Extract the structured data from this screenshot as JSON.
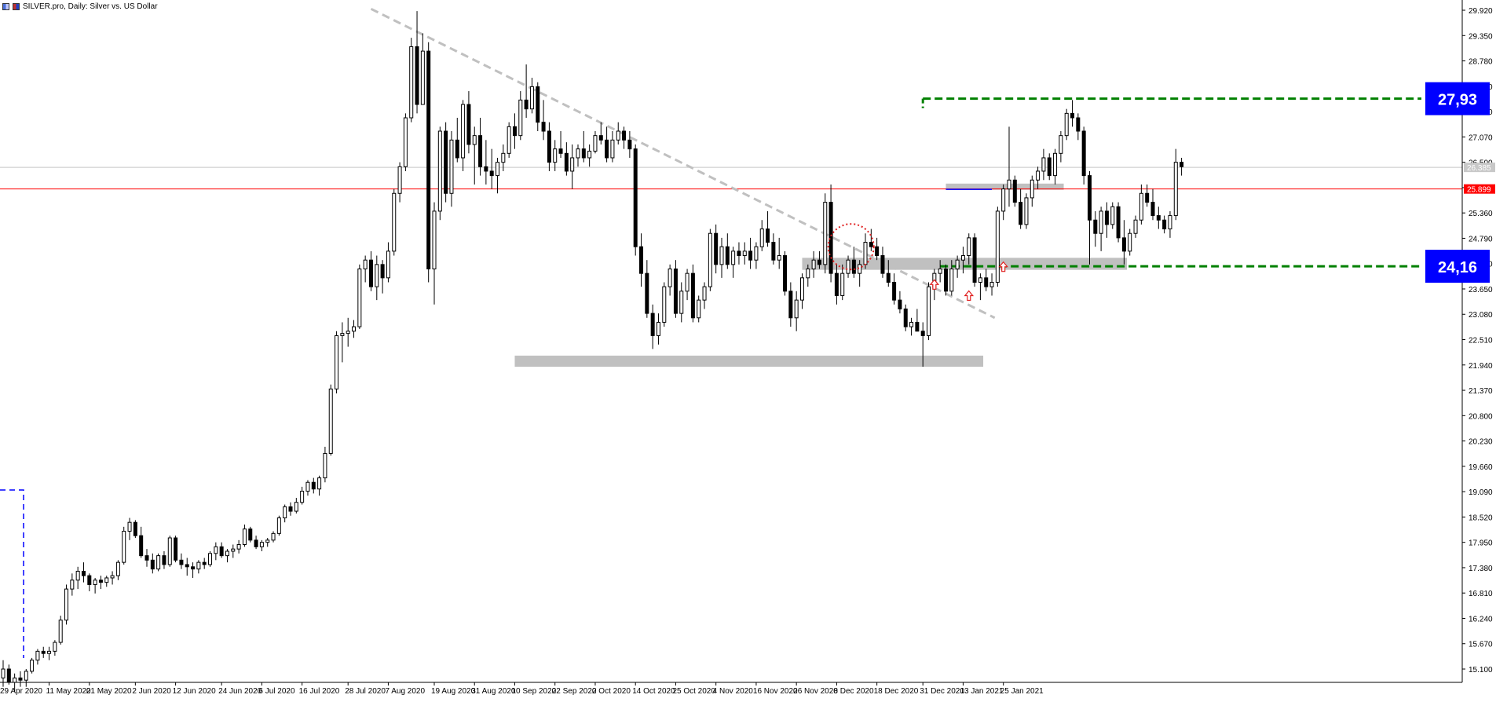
{
  "header": {
    "title": "SILVER.pro, Daily:  Silver vs. US Dollar"
  },
  "colors": {
    "background": "#ffffff",
    "candle_bear": "#000000",
    "candle_bull_fill": "#ffffff",
    "trendline": "#c0c0c0",
    "zone_fill": "#c0c0c0",
    "target_line": "#008000",
    "red_level": "#ff0000",
    "marker_blue": "#0000ff"
  },
  "labels": {
    "upper_target": "27,93",
    "lower_target": "24,16",
    "red_price_tag": "25.899",
    "current_price_tag": "26.385"
  },
  "chart_data": {
    "type": "candlestick",
    "title": "SILVER.pro, Daily:  Silver vs. US Dollar",
    "ylim": [
      14.8,
      30.15
    ],
    "y_ticks": [
      "29.920",
      "29.350",
      "28.780",
      "28.210",
      "27.640",
      "27.070",
      "26.500",
      "25.930",
      "25.360",
      "24.790",
      "24.220",
      "23.650",
      "23.080",
      "22.510",
      "21.940",
      "21.370",
      "20.800",
      "20.230",
      "19.660",
      "19.090",
      "18.520",
      "17.950",
      "17.380",
      "16.810",
      "16.240",
      "15.670",
      "15.100"
    ],
    "x_ticks": [
      "29 Apr 2020",
      "11 May 2020",
      "21 May 2020",
      "2 Jun 2020",
      "12 Jun 2020",
      "24 Jun 2020",
      "6 Jul 2020",
      "16 Jul 2020",
      "28 Jul 2020",
      "7 Aug 2020",
      "19 Aug 2020",
      "31 Aug 2020",
      "10 Sep 2020",
      "22 Sep 2020",
      "2 Oct 2020",
      "14 Oct 2020",
      "25 Oct 2020",
      "4 Nov 2020",
      "16 Nov 2020",
      "26 Nov 2020",
      "8 Dec 2020",
      "18 Dec 2020",
      "31 Dec 2020",
      "13 Jan 2021",
      "25 Jan 2021"
    ],
    "ohlc": [
      [
        14.9,
        15.3,
        14.7,
        15.1
      ],
      [
        15.1,
        15.2,
        14.75,
        14.8
      ],
      [
        14.8,
        15.0,
        14.6,
        14.9
      ],
      [
        14.9,
        15.05,
        14.7,
        14.85
      ],
      [
        14.85,
        15.1,
        14.7,
        15.05
      ],
      [
        15.05,
        15.35,
        15.0,
        15.3
      ],
      [
        15.3,
        15.55,
        15.2,
        15.5
      ],
      [
        15.5,
        15.6,
        15.35,
        15.45
      ],
      [
        15.45,
        15.6,
        15.3,
        15.5
      ],
      [
        15.5,
        15.75,
        15.4,
        15.7
      ],
      [
        15.7,
        16.3,
        15.65,
        16.2
      ],
      [
        16.2,
        17.0,
        16.1,
        16.9
      ],
      [
        16.9,
        17.25,
        16.75,
        17.1
      ],
      [
        17.1,
        17.4,
        16.9,
        17.3
      ],
      [
        17.3,
        17.5,
        17.05,
        17.2
      ],
      [
        17.2,
        17.25,
        16.85,
        17.0
      ],
      [
        17.0,
        17.15,
        16.8,
        17.1
      ],
      [
        17.1,
        17.2,
        16.9,
        17.05
      ],
      [
        17.05,
        17.2,
        16.95,
        17.15
      ],
      [
        17.15,
        17.3,
        17.0,
        17.2
      ],
      [
        17.2,
        17.55,
        17.1,
        17.5
      ],
      [
        17.5,
        18.3,
        17.45,
        18.2
      ],
      [
        18.2,
        18.5,
        18.0,
        18.4
      ],
      [
        18.4,
        18.45,
        18.05,
        18.1
      ],
      [
        18.1,
        18.3,
        17.6,
        17.65
      ],
      [
        17.65,
        17.8,
        17.4,
        17.55
      ],
      [
        17.55,
        17.7,
        17.25,
        17.35
      ],
      [
        17.35,
        17.7,
        17.3,
        17.65
      ],
      [
        17.65,
        17.75,
        17.35,
        17.45
      ],
      [
        17.45,
        18.1,
        17.4,
        18.05
      ],
      [
        18.05,
        18.1,
        17.5,
        17.55
      ],
      [
        17.55,
        17.7,
        17.35,
        17.45
      ],
      [
        17.45,
        17.6,
        17.2,
        17.4
      ],
      [
        17.4,
        17.5,
        17.15,
        17.35
      ],
      [
        17.35,
        17.55,
        17.25,
        17.5
      ],
      [
        17.5,
        17.6,
        17.35,
        17.45
      ],
      [
        17.45,
        17.75,
        17.4,
        17.7
      ],
      [
        17.7,
        17.95,
        17.55,
        17.85
      ],
      [
        17.85,
        17.95,
        17.6,
        17.65
      ],
      [
        17.65,
        17.8,
        17.5,
        17.75
      ],
      [
        17.75,
        17.9,
        17.6,
        17.8
      ],
      [
        17.8,
        18.0,
        17.7,
        17.9
      ],
      [
        17.9,
        18.35,
        17.85,
        18.25
      ],
      [
        18.25,
        18.3,
        17.95,
        18.0
      ],
      [
        18.0,
        18.1,
        17.8,
        17.85
      ],
      [
        17.85,
        18.0,
        17.75,
        17.95
      ],
      [
        17.95,
        18.05,
        17.85,
        18.0
      ],
      [
        18.0,
        18.2,
        17.95,
        18.15
      ],
      [
        18.15,
        18.55,
        18.1,
        18.5
      ],
      [
        18.5,
        18.8,
        18.4,
        18.75
      ],
      [
        18.75,
        18.85,
        18.55,
        18.65
      ],
      [
        18.65,
        18.95,
        18.6,
        18.85
      ],
      [
        18.85,
        19.2,
        18.8,
        19.1
      ],
      [
        19.1,
        19.35,
        19.0,
        19.3
      ],
      [
        19.3,
        19.4,
        19.05,
        19.15
      ],
      [
        19.15,
        19.45,
        19.0,
        19.4
      ],
      [
        19.4,
        20.1,
        19.3,
        19.95
      ],
      [
        19.95,
        21.5,
        19.9,
        21.4
      ],
      [
        21.4,
        22.7,
        21.3,
        22.6
      ],
      [
        22.6,
        22.9,
        22.0,
        22.65
      ],
      [
        22.65,
        23.0,
        22.35,
        22.7
      ],
      [
        22.7,
        22.95,
        22.55,
        22.8
      ],
      [
        22.8,
        24.2,
        22.75,
        24.1
      ],
      [
        24.1,
        24.4,
        23.8,
        24.3
      ],
      [
        24.3,
        24.5,
        23.6,
        23.7
      ],
      [
        23.7,
        24.4,
        23.4,
        24.2
      ],
      [
        24.2,
        24.3,
        23.55,
        23.9
      ],
      [
        23.9,
        24.7,
        23.8,
        24.5
      ],
      [
        24.5,
        25.9,
        24.4,
        25.8
      ],
      [
        25.8,
        26.5,
        25.6,
        26.4
      ],
      [
        26.4,
        27.6,
        26.3,
        27.5
      ],
      [
        27.5,
        29.3,
        27.4,
        29.1
      ],
      [
        29.1,
        29.9,
        27.6,
        27.8
      ],
      [
        27.8,
        29.4,
        27.9,
        29.0
      ],
      [
        29.0,
        29.2,
        23.8,
        24.1
      ],
      [
        24.1,
        25.6,
        23.3,
        25.4
      ],
      [
        25.4,
        27.3,
        25.2,
        27.2
      ],
      [
        27.2,
        27.4,
        25.6,
        25.8
      ],
      [
        25.8,
        27.2,
        25.5,
        27.0
      ],
      [
        27.0,
        27.5,
        26.5,
        26.6
      ],
      [
        26.6,
        27.9,
        26.3,
        27.8
      ],
      [
        27.8,
        28.1,
        26.7,
        26.9
      ],
      [
        26.9,
        27.3,
        26.0,
        27.1
      ],
      [
        27.1,
        27.5,
        26.2,
        26.4
      ],
      [
        26.4,
        27.0,
        26.0,
        26.3
      ],
      [
        26.3,
        26.8,
        25.9,
        26.2
      ],
      [
        26.2,
        26.6,
        25.8,
        26.5
      ],
      [
        26.5,
        26.9,
        26.3,
        26.7
      ],
      [
        26.7,
        27.4,
        26.6,
        27.3
      ],
      [
        27.3,
        27.6,
        26.8,
        27.1
      ],
      [
        27.1,
        28.1,
        27.0,
        27.9
      ],
      [
        27.9,
        28.7,
        27.5,
        27.7
      ],
      [
        27.7,
        28.4,
        27.6,
        28.2
      ],
      [
        28.2,
        28.3,
        27.2,
        27.4
      ],
      [
        27.4,
        27.9,
        27.0,
        27.2
      ],
      [
        27.2,
        27.4,
        26.3,
        26.5
      ],
      [
        26.5,
        27.0,
        26.3,
        26.8
      ],
      [
        26.8,
        27.2,
        26.6,
        26.7
      ],
      [
        26.7,
        26.95,
        26.2,
        26.3
      ],
      [
        26.3,
        26.9,
        25.9,
        26.6
      ],
      [
        26.6,
        26.9,
        26.4,
        26.8
      ],
      [
        26.8,
        27.2,
        26.5,
        26.6
      ],
      [
        26.6,
        26.9,
        26.4,
        26.75
      ],
      [
        26.75,
        27.2,
        26.7,
        27.1
      ],
      [
        27.1,
        27.4,
        26.9,
        27.0
      ],
      [
        27.0,
        27.3,
        26.5,
        26.6
      ],
      [
        26.6,
        27.2,
        26.5,
        27.0
      ],
      [
        27.0,
        27.4,
        26.9,
        27.2
      ],
      [
        27.2,
        27.3,
        26.8,
        27.0
      ],
      [
        27.0,
        27.2,
        26.6,
        26.8
      ],
      [
        26.8,
        26.9,
        24.4,
        24.6
      ],
      [
        24.6,
        24.9,
        23.7,
        24.0
      ],
      [
        24.0,
        24.3,
        23.0,
        23.1
      ],
      [
        23.1,
        23.3,
        22.3,
        22.6
      ],
      [
        22.6,
        23.1,
        22.4,
        22.9
      ],
      [
        22.9,
        23.8,
        22.8,
        23.7
      ],
      [
        23.7,
        24.2,
        23.5,
        24.1
      ],
      [
        24.1,
        24.3,
        23.0,
        23.1
      ],
      [
        23.1,
        23.8,
        22.9,
        23.6
      ],
      [
        23.6,
        24.1,
        23.4,
        24.0
      ],
      [
        24.0,
        24.2,
        22.9,
        23.0
      ],
      [
        23.0,
        23.5,
        22.9,
        23.4
      ],
      [
        23.4,
        23.8,
        23.2,
        23.7
      ],
      [
        23.7,
        25.0,
        23.6,
        24.9
      ],
      [
        24.9,
        25.1,
        24.0,
        24.2
      ],
      [
        24.2,
        24.8,
        23.9,
        24.6
      ],
      [
        24.6,
        24.9,
        24.1,
        24.2
      ],
      [
        24.2,
        24.6,
        23.9,
        24.5
      ],
      [
        24.5,
        24.7,
        24.2,
        24.4
      ],
      [
        24.4,
        24.7,
        24.2,
        24.5
      ],
      [
        24.5,
        24.8,
        24.1,
        24.3
      ],
      [
        24.3,
        24.7,
        24.1,
        24.6
      ],
      [
        24.6,
        25.2,
        24.5,
        25.0
      ],
      [
        25.0,
        25.4,
        24.6,
        24.7
      ],
      [
        24.7,
        24.9,
        24.2,
        24.3
      ],
      [
        24.3,
        24.8,
        24.1,
        24.4
      ],
      [
        24.4,
        24.5,
        23.5,
        23.6
      ],
      [
        23.6,
        23.8,
        22.8,
        23.0
      ],
      [
        23.0,
        23.6,
        22.7,
        23.4
      ],
      [
        23.4,
        24.0,
        23.2,
        23.9
      ],
      [
        23.9,
        24.2,
        23.7,
        24.1
      ],
      [
        24.1,
        24.5,
        23.9,
        24.3
      ],
      [
        24.3,
        24.5,
        24.1,
        24.2
      ],
      [
        24.2,
        25.8,
        24.0,
        25.6
      ],
      [
        25.6,
        26.0,
        23.8,
        24.0
      ],
      [
        24.0,
        24.2,
        23.3,
        23.5
      ],
      [
        23.5,
        24.2,
        23.4,
        24.0
      ],
      [
        24.0,
        24.4,
        23.9,
        24.3
      ],
      [
        24.3,
        24.6,
        23.9,
        24.0
      ],
      [
        24.0,
        24.3,
        23.7,
        24.2
      ],
      [
        24.2,
        24.9,
        24.1,
        24.7
      ],
      [
        24.7,
        25.0,
        24.5,
        24.6
      ],
      [
        24.6,
        24.8,
        24.3,
        24.4
      ],
      [
        24.4,
        24.6,
        23.9,
        24.0
      ],
      [
        24.0,
        24.3,
        23.7,
        23.8
      ],
      [
        23.8,
        24.0,
        23.3,
        23.4
      ],
      [
        23.4,
        23.6,
        23.1,
        23.2
      ],
      [
        23.2,
        23.3,
        22.7,
        22.8
      ],
      [
        22.8,
        23.0,
        22.6,
        22.9
      ],
      [
        22.9,
        23.2,
        22.7,
        22.7
      ],
      [
        22.7,
        22.9,
        21.9,
        22.6
      ],
      [
        22.6,
        23.8,
        22.5,
        23.7
      ],
      [
        23.7,
        24.1,
        23.4,
        24.0
      ],
      [
        24.0,
        24.3,
        23.8,
        24.1
      ],
      [
        24.1,
        24.2,
        23.5,
        23.6
      ],
      [
        23.6,
        24.3,
        23.5,
        24.1
      ],
      [
        24.1,
        24.4,
        23.9,
        24.3
      ],
      [
        24.3,
        24.6,
        24.0,
        24.4
      ],
      [
        24.4,
        24.9,
        24.2,
        24.8
      ],
      [
        24.8,
        24.9,
        23.7,
        23.8
      ],
      [
        23.8,
        24.0,
        23.4,
        23.9
      ],
      [
        23.9,
        24.1,
        23.6,
        23.7
      ],
      [
        23.7,
        24.0,
        23.5,
        23.8
      ],
      [
        23.8,
        25.5,
        23.7,
        25.4
      ],
      [
        25.4,
        26.0,
        25.2,
        25.9
      ],
      [
        25.9,
        27.3,
        25.5,
        26.1
      ],
      [
        26.1,
        26.2,
        25.5,
        25.6
      ],
      [
        25.6,
        25.9,
        25.0,
        25.1
      ],
      [
        25.1,
        25.8,
        25.0,
        25.7
      ],
      [
        25.7,
        26.2,
        25.5,
        26.1
      ],
      [
        26.1,
        26.4,
        25.9,
        26.3
      ],
      [
        26.3,
        26.8,
        26.1,
        26.6
      ],
      [
        26.6,
        26.7,
        26.1,
        26.2
      ],
      [
        26.2,
        26.8,
        26.0,
        26.7
      ],
      [
        26.7,
        27.2,
        26.5,
        27.1
      ],
      [
        27.1,
        27.7,
        27.0,
        27.6
      ],
      [
        27.6,
        27.9,
        27.3,
        27.5
      ],
      [
        27.5,
        27.6,
        27.0,
        27.2
      ],
      [
        27.2,
        27.3,
        26.0,
        26.2
      ],
      [
        26.2,
        26.3,
        24.2,
        25.2
      ],
      [
        25.2,
        25.4,
        24.6,
        24.9
      ],
      [
        24.9,
        25.5,
        24.5,
        25.4
      ],
      [
        25.4,
        25.6,
        24.8,
        25.1
      ],
      [
        25.1,
        25.6,
        25.0,
        25.5
      ],
      [
        25.5,
        25.6,
        24.7,
        24.8
      ],
      [
        24.8,
        25.2,
        24.2,
        24.5
      ],
      [
        24.5,
        25.0,
        24.4,
        24.9
      ],
      [
        24.9,
        25.3,
        24.8,
        25.2
      ],
      [
        25.2,
        26.0,
        25.1,
        25.8
      ],
      [
        25.8,
        26.0,
        25.5,
        25.6
      ],
      [
        25.6,
        25.9,
        25.2,
        25.3
      ],
      [
        25.3,
        25.5,
        25.0,
        25.2
      ],
      [
        25.2,
        25.3,
        24.9,
        25.0
      ],
      [
        25.0,
        25.4,
        24.8,
        25.3
      ],
      [
        25.3,
        26.8,
        25.2,
        26.5
      ],
      [
        26.5,
        26.6,
        26.2,
        26.4
      ]
    ],
    "annotations": {
      "upper_target": 27.93,
      "lower_target": 24.16,
      "red_level": 25.899,
      "current_price": 26.385
    }
  }
}
